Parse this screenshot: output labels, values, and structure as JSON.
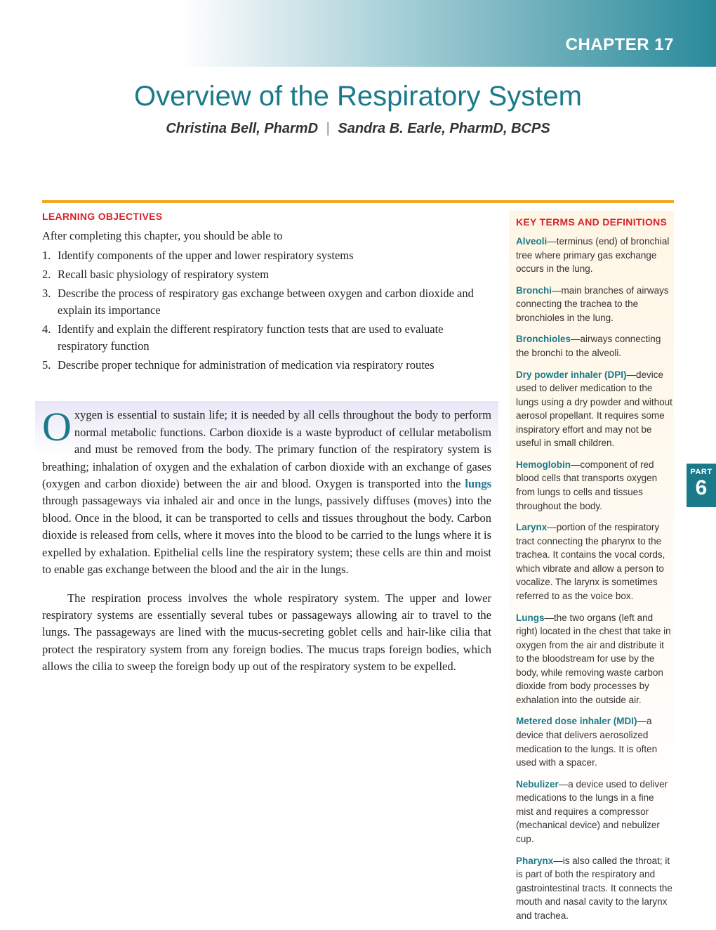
{
  "header": {
    "chapter_label": "CHAPTER 17",
    "gradient_start": "#ffffff",
    "gradient_end": "#2a8a9a"
  },
  "title": "Overview of the Respiratory System",
  "title_color": "#1a7a8a",
  "authors": {
    "a1": "Christina Bell, PharmD",
    "sep": "|",
    "a2": "Sandra B. Earle, PharmD, BCPS"
  },
  "rule_color": "#f5a623",
  "objectives": {
    "heading": "LEARNING OBJECTIVES",
    "heading_color": "#d9232e",
    "intro": "After completing this chapter, you should be able to",
    "items": [
      "Identify components of the upper and lower respiratory systems",
      "Recall basic physiology of respiratory system",
      "Describe the process of respiratory gas exchange between oxygen and carbon dioxide and explain its importance",
      "Identify and explain the different respiratory function tests that are used to evaluate respiratory function",
      "Describe proper technique for administration of medication via respiratory routes"
    ]
  },
  "body": {
    "p1_a": "Oxygen is essential to sustain life; it is needed by all cells throughout the body to perform normal metabolic functions. Carbon dioxide is a waste byproduct of cellular metabolism and must be removed from the body. The primary function of the respiratory system is breathing; inhalation of oxygen and the exhalation of carbon dioxide with an exchange of gases (oxygen and carbon dioxide) between the air and blood. Oxygen is transported into the ",
    "p1_bold": "lungs",
    "p1_b": " through passageways via inhaled air and once in the lungs, passively diffuses (moves) into the blood. Once in the blood, it can be transported to cells and tissues throughout the body. Carbon dioxide is released from cells, where it moves into the blood to be carried to the lungs where it is expelled by exhalation. Epithelial cells line the respiratory system; these cells are thin and moist to enable gas exchange between the blood and the air in the lungs.",
    "p2": "The respiration process involves the whole respiratory system. The upper and lower respiratory systems are essentially several tubes or passageways allowing air to travel to the lungs. The passageways are lined with the mucus-secreting goblet cells and hair-like cilia that protect the respiratory system from any foreign bodies. The mucus traps foreign bodies, which allows the cilia to sweep the foreign body up out of the respiratory system to be expelled."
  },
  "sidebar": {
    "heading": "KEY TERMS AND DEFINITIONS",
    "bg_color": "#fff6e5",
    "terms": [
      {
        "name": "Alveoli",
        "def": "—terminus (end) of bronchial tree where primary gas exchange occurs in the lung."
      },
      {
        "name": "Bronchi",
        "def": "—main branches of airways connecting the trachea to the bronchioles in the lung."
      },
      {
        "name": "Bronchioles",
        "def": "—airways connecting the bronchi to the alveoli."
      },
      {
        "name": "Dry powder inhaler (DPI)",
        "def": "—device used to deliver medication to the lungs using a dry powder and without aerosol propellant. It requires some inspiratory effort and may not be useful in small children."
      },
      {
        "name": "Hemoglobin",
        "def": "—component of red blood cells that transports oxygen from lungs to cells and tissues throughout the body."
      },
      {
        "name": "Larynx",
        "def": "—portion of the respiratory tract connecting the pharynx to the trachea. It contains the vocal cords, which vibrate and allow a person to vocalize. The larynx is sometimes referred to as the voice box."
      },
      {
        "name": "Lungs",
        "def": "—the two organs (left and right) located in the chest that take in oxygen from the air and distribute it to the bloodstream for use by the body, while removing waste carbon dioxide from body processes by exhalation into the outside air."
      },
      {
        "name": "Metered dose inhaler (MDI)",
        "def": "—a device that delivers aerosolized medication to the lungs. It is often used with a spacer."
      },
      {
        "name": "Nebulizer",
        "def": "—a device used to deliver medications to the lungs in a fine mist and requires a compressor (mechanical device) and nebulizer cup."
      },
      {
        "name": "Pharynx",
        "def": "—is also called the throat; it is part of both the respiratory and gastrointestinal tracts. It connects the mouth and nasal cavity to the larynx and trachea."
      }
    ]
  },
  "part_tab": {
    "label": "PART",
    "number": "6",
    "bg": "#1a7a8a"
  }
}
